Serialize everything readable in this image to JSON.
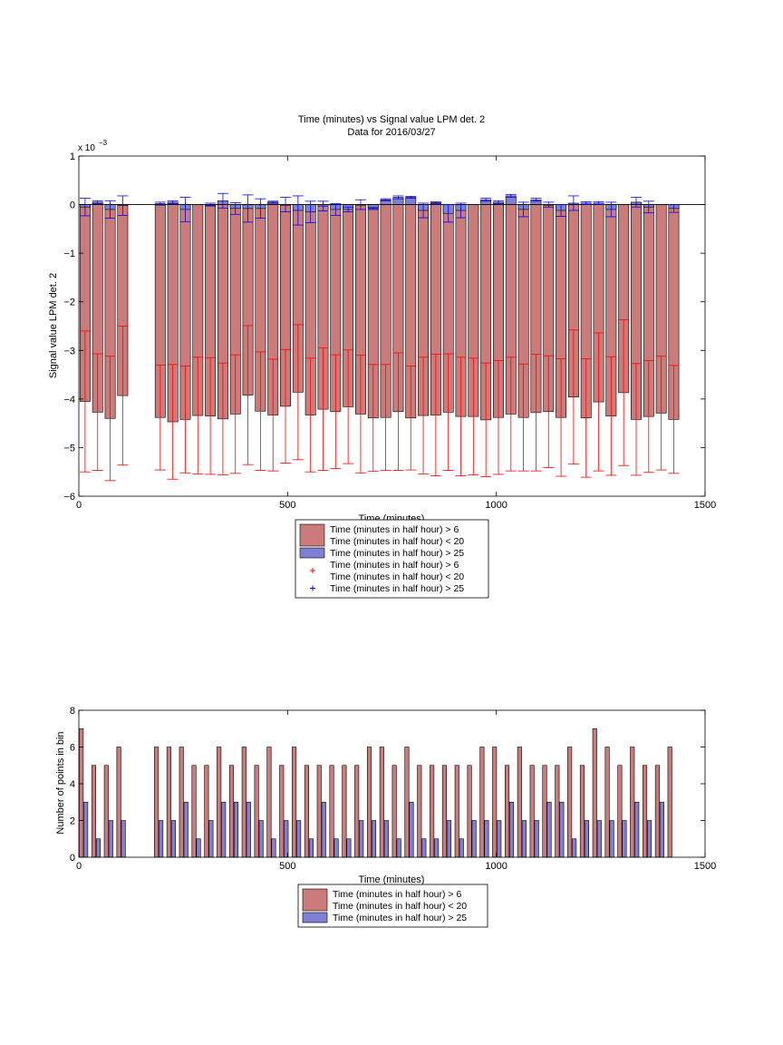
{
  "colors": {
    "red_bar": "#cc7b7b",
    "blue_bar": "#7f7fd5",
    "red_err": "#ff0000",
    "blue_err": "#0000ff",
    "axis": "#000000"
  },
  "chart_data": [
    {
      "type": "bar",
      "title": "Time (minutes) vs Signal value LPM det. 2",
      "subtitle": "Data for 2016/03/27",
      "xlabel": "Time (minutes)",
      "ylabel": "Signal value LPM det. 2",
      "exponent_label": "x 10",
      "exponent_power": "−3",
      "xlim": [
        0,
        1500
      ],
      "ylim": [
        -6,
        1
      ],
      "xticks": [
        0,
        500,
        1000,
        1500
      ],
      "yticks": [
        -6,
        -5,
        -4,
        -3,
        -2,
        -1,
        0,
        1
      ],
      "ytick_labels": [
        "−6",
        "−5",
        "−4",
        "−3",
        "−2",
        "−1",
        "0",
        "1"
      ],
      "legend_position": "below",
      "legend": [
        {
          "kind": "bar",
          "color": "#cc7b7b",
          "lines": [
            "Time (minutes in half hour) > 6",
            "Time (minutes in half hour) < 20"
          ]
        },
        {
          "kind": "bar",
          "color": "#7f7fd5",
          "lines": [
            "Time (minutes in half hour) > 25"
          ]
        },
        {
          "kind": "marker",
          "color": "#ff0000",
          "lines": [
            "Time (minutes in half hour) > 6",
            "Time (minutes in half hour) < 20"
          ]
        },
        {
          "kind": "marker",
          "color": "#0000ff",
          "lines": [
            "Time (minutes in half hour) > 25"
          ]
        }
      ],
      "x": [
        15,
        45,
        75,
        105,
        195,
        225,
        255,
        285,
        315,
        345,
        375,
        405,
        435,
        465,
        495,
        525,
        555,
        585,
        615,
        645,
        675,
        705,
        735,
        765,
        795,
        825,
        855,
        885,
        915,
        945,
        975,
        1005,
        1035,
        1065,
        1095,
        1125,
        1155,
        1185,
        1215,
        1245,
        1275,
        1305,
        1335,
        1365,
        1395,
        1425
      ],
      "series": [
        {
          "name": "Time (minutes in half hour) > 6\nTime (minutes in half hour) < 20",
          "values": [
            -4.05,
            -4.27,
            -4.4,
            -3.93,
            -4.38,
            -4.47,
            -4.42,
            -4.34,
            -4.35,
            -4.41,
            -4.31,
            -3.92,
            -4.25,
            -4.33,
            -4.15,
            -3.86,
            -4.33,
            -4.21,
            -4.26,
            -4.16,
            -4.31,
            -4.39,
            -4.38,
            -4.26,
            -4.39,
            -4.34,
            -4.33,
            -4.27,
            -4.36,
            -4.36,
            -4.43,
            -4.38,
            -4.31,
            -4.38,
            -4.28,
            -4.26,
            -4.38,
            -3.96,
            -4.39,
            -4.06,
            -4.35,
            -3.87,
            -4.42,
            -4.36,
            -4.29,
            -4.42
          ],
          "error": [
            1.45,
            1.2,
            1.28,
            1.43,
            1.08,
            1.18,
            1.1,
            1.2,
            1.2,
            1.15,
            1.22,
            1.43,
            1.22,
            1.15,
            1.17,
            1.39,
            1.17,
            1.26,
            1.17,
            1.17,
            1.21,
            1.1,
            1.09,
            1.21,
            1.07,
            1.2,
            1.25,
            1.2,
            1.22,
            1.2,
            1.17,
            1.17,
            1.17,
            1.1,
            1.2,
            1.15,
            1.21,
            1.38,
            1.22,
            1.42,
            1.22,
            1.5,
            1.15,
            1.15,
            1.17,
            1.11
          ]
        },
        {
          "name": "Time (minutes in half hour) > 25",
          "values": [
            -0.05,
            0.05,
            -0.1,
            -0.02,
            0.02,
            0.05,
            -0.1,
            0.0,
            0.08,
            -0.08,
            -0.08,
            -0.08,
            0.05,
            0.0,
            -0.12,
            -0.15,
            -0.03,
            -0.1,
            -0.1,
            0.0,
            -0.08,
            0.1,
            0.15,
            0.15,
            -0.12,
            0.04,
            -0.18,
            -0.12,
            0.1,
            0.05,
            0.18,
            -0.1,
            0.1,
            0.0,
            -0.12,
            0.03,
            0.03,
            0.03,
            -0.1,
            0.05,
            -0.05,
            -0.08
          ],
          "error": [
            0.18,
            0.03,
            0.18,
            0.2,
            0.03,
            0.03,
            0.25,
            0.03,
            0.15,
            0.12,
            0.28,
            0.2,
            0.02,
            0.15,
            0.3,
            0.22,
            0.1,
            0.12,
            0.05,
            0.1,
            0.02,
            0.02,
            0.03,
            0.02,
            0.15,
            0.02,
            0.18,
            0.15,
            0.03,
            0.03,
            0.03,
            0.15,
            0.03,
            0.05,
            0.12,
            0.15,
            0.03,
            0.03,
            0.15,
            0.1,
            0.12,
            0.08
          ],
          "x": [
            15,
            45,
            75,
            105,
            195,
            225,
            255,
            315,
            345,
            375,
            405,
            435,
            465,
            495,
            525,
            555,
            585,
            615,
            645,
            675,
            705,
            735,
            765,
            795,
            825,
            855,
            885,
            915,
            975,
            1005,
            1035,
            1065,
            1095,
            1125,
            1155,
            1185,
            1215,
            1245,
            1275,
            1335,
            1365,
            1425
          ]
        }
      ]
    },
    {
      "type": "bar",
      "xlabel": "Time (minutes)",
      "ylabel": "Number of points in bin",
      "xlim": [
        0,
        1500
      ],
      "ylim": [
        0,
        8
      ],
      "xticks": [
        0,
        500,
        1000,
        1500
      ],
      "yticks": [
        0,
        2,
        4,
        6,
        8
      ],
      "legend_position": "below",
      "legend": [
        {
          "kind": "bar",
          "color": "#cc7b7b",
          "lines": [
            "Time (minutes in half hour) > 6",
            "Time (minutes in half hour) < 20"
          ]
        },
        {
          "kind": "bar",
          "color": "#7f7fd5",
          "lines": [
            "Time (minutes in half hour) > 25"
          ]
        }
      ],
      "x": [
        15,
        45,
        75,
        105,
        195,
        225,
        255,
        285,
        315,
        345,
        375,
        405,
        435,
        465,
        495,
        525,
        555,
        585,
        615,
        645,
        675,
        705,
        735,
        765,
        795,
        825,
        855,
        885,
        915,
        945,
        975,
        1005,
        1035,
        1065,
        1095,
        1125,
        1155,
        1185,
        1215,
        1245,
        1275,
        1305,
        1335,
        1365,
        1395,
        1425
      ],
      "series": [
        {
          "name": "Time (minutes in half hour) > 6\nTime (minutes in half hour) < 20",
          "values": [
            7,
            5,
            5,
            6,
            6,
            6,
            6,
            5,
            5,
            6,
            5,
            6,
            5,
            6,
            5,
            6,
            5,
            5,
            5,
            5,
            5,
            6,
            6,
            5,
            6,
            5,
            5,
            5,
            5,
            5,
            6,
            6,
            5,
            6,
            5,
            5,
            5,
            6,
            5,
            7,
            6,
            5,
            6,
            5,
            5,
            6
          ]
        },
        {
          "name": "Time (minutes in half hour) > 25",
          "values": [
            3,
            1,
            2,
            2,
            2,
            2,
            3,
            1,
            2,
            3,
            3,
            3,
            2,
            1,
            2,
            2,
            1,
            3,
            1,
            1,
            2,
            2,
            2,
            1,
            3,
            1,
            1,
            2,
            1,
            2,
            2,
            2,
            3,
            2,
            2,
            3,
            3,
            1,
            2,
            2,
            2,
            2,
            3,
            2,
            3,
            0
          ]
        }
      ]
    }
  ]
}
